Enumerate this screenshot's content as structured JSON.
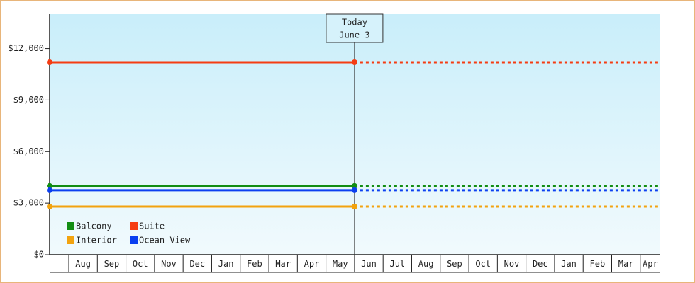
{
  "chart_data": {
    "type": "line",
    "categories": [
      null,
      "Aug",
      "Sep",
      "Oct",
      "Nov",
      "Dec",
      "Jan",
      "Feb",
      "Mar",
      "Apr",
      "May",
      "Jun",
      "Jul",
      "Aug",
      "Sep",
      "Oct",
      "Nov",
      "Dec",
      "Jan",
      "Feb",
      "Mar",
      "Apr"
    ],
    "series": [
      {
        "name": "Balcony",
        "color": "#138d13",
        "values": [
          4000,
          4000,
          4000,
          4000,
          4000,
          4000,
          4000,
          4000,
          4000,
          4000,
          4000,
          4000,
          4000,
          4000,
          4000,
          4000,
          4000,
          4000,
          4000,
          4000,
          4000,
          4000
        ]
      },
      {
        "name": "Suite",
        "color": "#f53c12",
        "values": [
          11200,
          11200,
          11200,
          11200,
          11200,
          11200,
          11200,
          11200,
          11200,
          11200,
          11200,
          11200,
          11200,
          11200,
          11200,
          11200,
          11200,
          11200,
          11200,
          11200,
          11200,
          11200
        ]
      },
      {
        "name": "Interior",
        "color": "#f2a30f",
        "values": [
          2800,
          2800,
          2800,
          2800,
          2800,
          2800,
          2800,
          2800,
          2800,
          2800,
          2800,
          2800,
          2800,
          2800,
          2800,
          2800,
          2800,
          2800,
          2800,
          2800,
          2800,
          2800
        ]
      },
      {
        "name": "Ocean View",
        "color": "#0b3ff0",
        "values": [
          3750,
          3750,
          3750,
          3750,
          3750,
          3750,
          3750,
          3750,
          3750,
          3750,
          3750,
          3750,
          3750,
          3750,
          3750,
          3750,
          3750,
          3750,
          3750,
          3750,
          3750,
          3750
        ]
      }
    ],
    "annotation": {
      "lines": [
        "Today",
        "June 3"
      ],
      "at": "Jun"
    },
    "ylim": [
      0,
      14000
    ],
    "yticks": [
      {
        "value": 0,
        "label": "$0"
      },
      {
        "value": 3000,
        "label": "$3,000"
      },
      {
        "value": 6000,
        "label": "$6,000"
      },
      {
        "value": 9000,
        "label": "$9,000"
      },
      {
        "value": 12000,
        "label": "$12,000"
      }
    ],
    "legend": "lower left"
  }
}
